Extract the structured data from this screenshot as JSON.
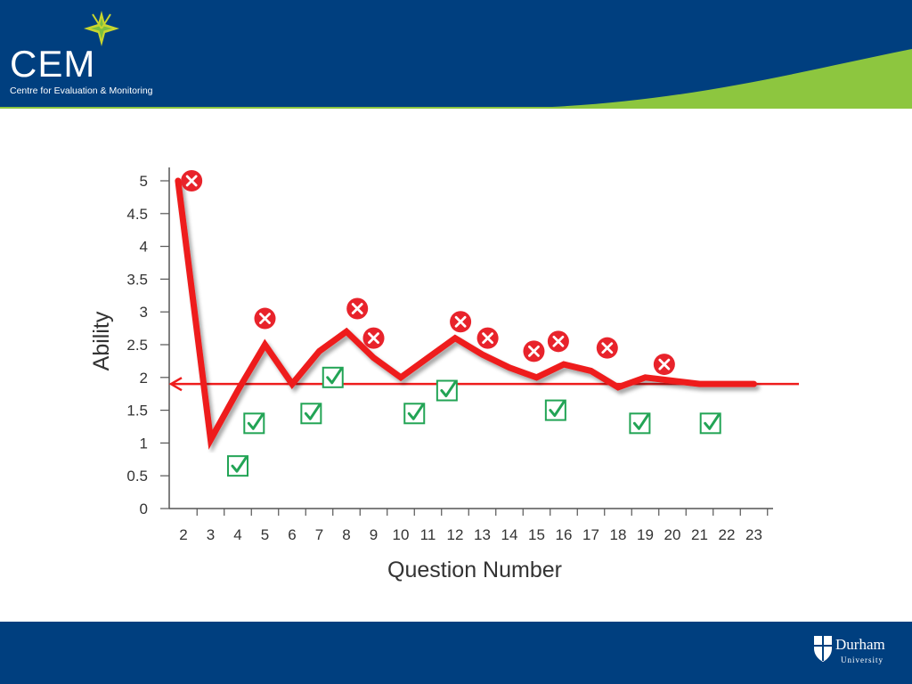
{
  "header": {
    "brand_name": "CEM",
    "brand_subtitle": "Centre for Evaluation & Monitoring",
    "colors": {
      "navy": "#003f7f",
      "green": "#8dc63f",
      "accent": "#c8d62f"
    }
  },
  "chart_data": {
    "type": "line",
    "title": "",
    "xlabel": "Question Number",
    "ylabel": "Ability",
    "categories": [
      "2",
      "3",
      "4",
      "5",
      "6",
      "7",
      "8",
      "9",
      "10",
      "11",
      "12",
      "13",
      "14",
      "15",
      "16",
      "17",
      "18",
      "19",
      "20",
      "21",
      "22",
      "23"
    ],
    "ylim": [
      0,
      5
    ],
    "yticks": [
      "0",
      "0.5",
      "1",
      "1.5",
      "2",
      "2.5",
      "3",
      "3.5",
      "4",
      "4.5",
      "5"
    ],
    "series": [
      {
        "name": "",
        "color": "#ee1c1c",
        "x": [
          1.8,
          3,
          4,
          5,
          6,
          7,
          8,
          9,
          10,
          11,
          12,
          13,
          14,
          15,
          16,
          17,
          18,
          19,
          20,
          21,
          22,
          23
        ],
        "values": [
          5.0,
          1.05,
          1.8,
          2.5,
          1.9,
          2.4,
          2.7,
          2.3,
          2.0,
          2.3,
          2.6,
          2.35,
          2.15,
          2.0,
          2.2,
          2.1,
          1.85,
          2.0,
          1.95,
          1.9,
          1.9,
          1.9
        ]
      }
    ],
    "reference_line": {
      "value": 1.9,
      "color": "#ee1c1c"
    },
    "incorrect_marks": [
      {
        "x": 2.3,
        "y": 5.0
      },
      {
        "x": 5.0,
        "y": 2.9
      },
      {
        "x": 8.4,
        "y": 3.05
      },
      {
        "x": 9.0,
        "y": 2.6
      },
      {
        "x": 12.2,
        "y": 2.85
      },
      {
        "x": 13.2,
        "y": 2.6
      },
      {
        "x": 14.9,
        "y": 2.4
      },
      {
        "x": 15.8,
        "y": 2.55
      },
      {
        "x": 17.6,
        "y": 2.45
      },
      {
        "x": 19.7,
        "y": 2.2
      }
    ],
    "correct_marks": [
      {
        "x": 4.0,
        "y": 0.65
      },
      {
        "x": 4.6,
        "y": 1.3
      },
      {
        "x": 6.7,
        "y": 1.45
      },
      {
        "x": 7.5,
        "y": 2.0
      },
      {
        "x": 10.5,
        "y": 1.45
      },
      {
        "x": 11.7,
        "y": 1.8
      },
      {
        "x": 15.7,
        "y": 1.5
      },
      {
        "x": 18.8,
        "y": 1.3
      },
      {
        "x": 21.4,
        "y": 1.3
      }
    ],
    "mark_colors": {
      "incorrect": "#e8232b",
      "correct": "#22a455"
    },
    "grid": false
  },
  "footer": {
    "university_name": "Durham",
    "university_sub": "University"
  }
}
